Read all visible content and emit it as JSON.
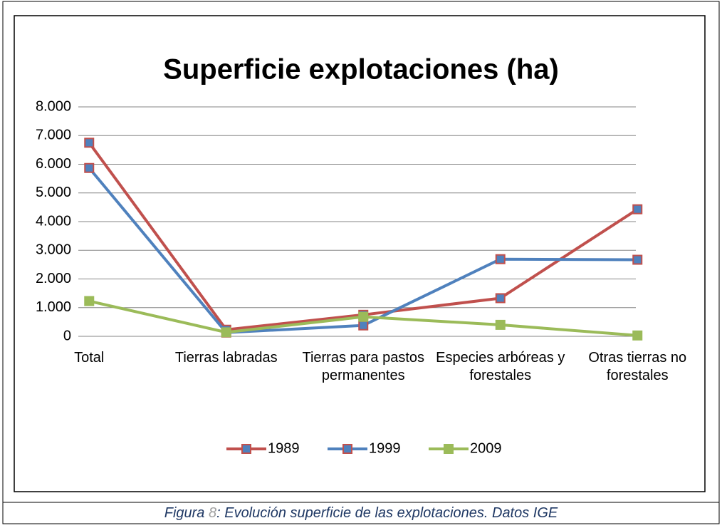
{
  "chart_data": {
    "type": "line",
    "title": "Superficie explotaciones (ha)",
    "categories": [
      "Total",
      "Tierras labradas",
      "Tierras para pastos permanentes",
      "Especies arbóreas y forestales",
      "Otras tierras no forestales"
    ],
    "series": [
      {
        "name": "1989",
        "color": "#c0504d",
        "marker_fill": "#4f81bd",
        "marker_edge": "#c0504d",
        "values": [
          6750,
          230,
          750,
          1330,
          4430
        ]
      },
      {
        "name": "1999",
        "color": "#4f81bd",
        "marker_fill": "#4f81bd",
        "marker_edge": "#c0504d",
        "values": [
          5870,
          130,
          380,
          2690,
          2670
        ]
      },
      {
        "name": "2009",
        "color": "#9bbb59",
        "marker_fill": "#9bbb59",
        "marker_edge": "#9bbb59",
        "values": [
          1230,
          140,
          680,
          400,
          30
        ]
      }
    ],
    "ylim": [
      0,
      8000
    ],
    "yticks": [
      0,
      {
        "value": 1000,
        "label": "1.000"
      },
      {
        "value": 2000,
        "label": "2.000"
      },
      {
        "value": 3000,
        "label": "3.000"
      },
      {
        "value": 4000,
        "label": "4.000"
      },
      {
        "value": 5000,
        "label": "5.000"
      },
      {
        "value": 6000,
        "label": "6.000"
      },
      {
        "value": 7000,
        "label": "7.000"
      },
      {
        "value": 8000,
        "label": "8.000"
      }
    ],
    "grid": true,
    "legend": "bottom"
  },
  "caption": {
    "prefix": "Figura ",
    "number": "8",
    "text": ": Evolución superficie de las explotaciones. Datos IGE"
  }
}
